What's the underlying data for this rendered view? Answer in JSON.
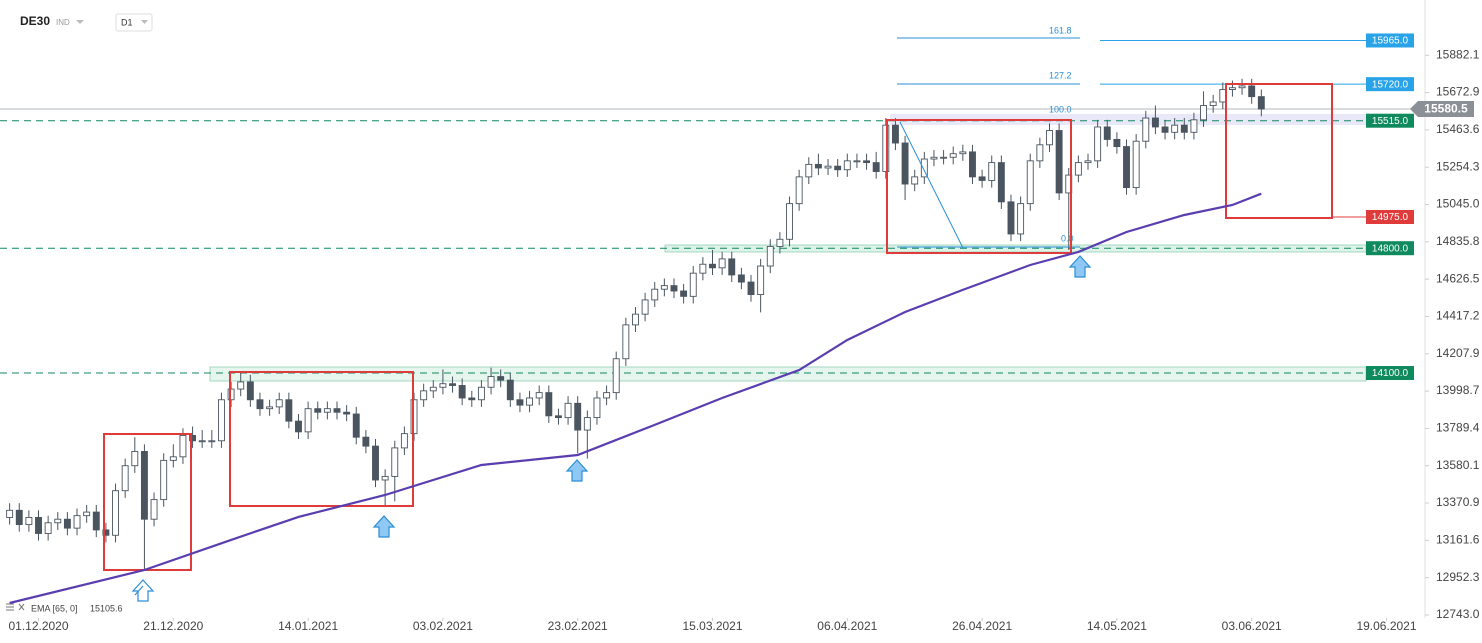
{
  "chart_data": {
    "type": "candlestick",
    "symbol": "DE30",
    "market": "IND",
    "interval": "D1",
    "bull_color": "#ffffff",
    "bear_color": "#4a5560",
    "outline_color": "#4a5560",
    "open": [
      13290,
      13330,
      13250,
      13290,
      13200,
      13260,
      13280,
      13230,
      13300,
      13320,
      13220,
      13190,
      13440,
      13580,
      13660,
      13280,
      13390,
      13610,
      13630,
      13750,
      13720,
      13720,
      13720,
      13950,
      14010,
      14050,
      13950,
      13900,
      13910,
      13950,
      13830,
      13770,
      13900,
      13880,
      13900,
      13880,
      13870,
      13740,
      13690,
      13500,
      13520,
      13680,
      13760,
      13950,
      14000,
      14020,
      14040,
      14030,
      13960,
      13950,
      14020,
      14080,
      14060,
      13950,
      13920,
      13960,
      13990,
      13860,
      13850,
      13930,
      13780,
      13850,
      13960,
      13990,
      14180,
      14370,
      14430,
      14510,
      14570,
      14590,
      14560,
      14530,
      14660,
      14710,
      14690,
      14740,
      14650,
      14610,
      14540,
      14700,
      14810,
      14850,
      15050,
      15200,
      15270,
      15250,
      15260,
      15240,
      15290,
      15290,
      15280,
      15230,
      15490,
      15390,
      15160,
      15200,
      15300,
      15310,
      15310,
      15330,
      15340,
      15200,
      15180,
      15280,
      15060,
      14880,
      15050,
      15290,
      15380,
      15460,
      15110,
      15210,
      15280,
      15290,
      15480,
      15410,
      15370,
      15140,
      15400,
      15530,
      15480,
      15450,
      15490,
      15450,
      15520,
      15600,
      15620,
      15690,
      15700,
      15710,
      15650
    ],
    "high": [
      13370,
      13370,
      13330,
      13330,
      13300,
      13320,
      13320,
      13340,
      13360,
      13360,
      13260,
      13480,
      13620,
      13740,
      13700,
      13430,
      13650,
      13700,
      13790,
      13800,
      13780,
      13780,
      13990,
      14050,
      14110,
      14090,
      13990,
      13950,
      13990,
      13990,
      13870,
      13940,
      13940,
      13940,
      13940,
      13920,
      13910,
      13780,
      13730,
      13560,
      13720,
      13800,
      13990,
      14040,
      14060,
      14120,
      14080,
      14070,
      14000,
      14060,
      14130,
      14120,
      14100,
      13990,
      14000,
      14030,
      14030,
      13900,
      13970,
      13970,
      13890,
      14000,
      14030,
      14220,
      14410,
      14470,
      14550,
      14610,
      14630,
      14630,
      14600,
      14700,
      14750,
      14790,
      14780,
      14780,
      14690,
      14650,
      14740,
      14850,
      14890,
      15090,
      15240,
      15310,
      15330,
      15300,
      15300,
      15330,
      15330,
      15330,
      15340,
      15530,
      15530,
      15430,
      15240,
      15340,
      15350,
      15350,
      15370,
      15380,
      15380,
      15240,
      15320,
      15320,
      15100,
      15090,
      15330,
      15420,
      15500,
      15500,
      15250,
      15320,
      15330,
      15520,
      15520,
      15450,
      15410,
      15440,
      15570,
      15600,
      15520,
      15530,
      15530,
      15560,
      15680,
      15660,
      15730,
      15740,
      15750,
      15750,
      15690
    ],
    "low": [
      13250,
      13210,
      13210,
      13160,
      13160,
      13220,
      13190,
      13190,
      13260,
      13180,
      13150,
      13150,
      13400,
      13540,
      13000,
      13240,
      13350,
      13570,
      13590,
      13680,
      13680,
      13680,
      13680,
      13910,
      13970,
      13910,
      13860,
      13860,
      13870,
      13790,
      13730,
      13730,
      13840,
      13840,
      13840,
      13830,
      13700,
      13650,
      13460,
      13350,
      13380,
      13640,
      13720,
      13910,
      13960,
      13980,
      13990,
      13920,
      13910,
      13910,
      13980,
      14020,
      13910,
      13880,
      13880,
      13920,
      13820,
      13810,
      13810,
      13650,
      13620,
      13810,
      13920,
      13950,
      14140,
      14330,
      14390,
      14470,
      14530,
      14520,
      14490,
      14490,
      14620,
      14650,
      14650,
      14610,
      14570,
      14500,
      14440,
      14660,
      14770,
      14810,
      15010,
      15160,
      15210,
      15210,
      15200,
      15200,
      15250,
      15240,
      15190,
      15190,
      15350,
      15070,
      15120,
      15160,
      15260,
      15270,
      15270,
      15290,
      15160,
      15140,
      15140,
      15020,
      14840,
      14840,
      15010,
      15250,
      15340,
      15070,
      14790,
      15170,
      15240,
      15250,
      15370,
      15330,
      15100,
      15100,
      15360,
      15440,
      15410,
      15410,
      15410,
      15410,
      15480,
      15560,
      15580,
      15650,
      15660,
      15610,
      15540
    ],
    "close": [
      13330,
      13250,
      13290,
      13200,
      13260,
      13280,
      13230,
      13300,
      13320,
      13220,
      13190,
      13440,
      13580,
      13660,
      13280,
      13390,
      13610,
      13630,
      13750,
      13720,
      13720,
      13720,
      13950,
      14010,
      14050,
      13950,
      13900,
      13910,
      13950,
      13830,
      13770,
      13900,
      13880,
      13900,
      13880,
      13870,
      13740,
      13690,
      13500,
      13520,
      13680,
      13760,
      13950,
      14000,
      14020,
      14040,
      14030,
      13960,
      13950,
      14020,
      14080,
      14060,
      13950,
      13920,
      13960,
      13990,
      13860,
      13850,
      13930,
      13780,
      13850,
      13960,
      13990,
      14180,
      14370,
      14430,
      14510,
      14570,
      14590,
      14560,
      14530,
      14660,
      14710,
      14690,
      14740,
      14650,
      14610,
      14540,
      14700,
      14810,
      14850,
      15050,
      15200,
      15270,
      15250,
      15260,
      15240,
      15290,
      15290,
      15280,
      15230,
      15490,
      15390,
      15160,
      15200,
      15300,
      15310,
      15310,
      15330,
      15340,
      15200,
      15180,
      15280,
      15060,
      14880,
      15050,
      15290,
      15380,
      15460,
      15110,
      15210,
      15280,
      15290,
      15480,
      15410,
      15370,
      15140,
      15400,
      15530,
      15480,
      15450,
      15490,
      15450,
      15520,
      15600,
      15620,
      15690,
      15700,
      15710,
      15650,
      15580.5
    ],
    "xlim": [
      -1,
      147
    ],
    "xticks": [
      {
        "value": 3,
        "label": "01.12.2020"
      },
      {
        "value": 17,
        "label": "21.12.2020"
      },
      {
        "value": 31,
        "label": "14.01.2021"
      },
      {
        "value": 45,
        "label": "03.02.2021"
      },
      {
        "value": 59,
        "label": "23.02.2021"
      },
      {
        "value": 73,
        "label": "15.03.2021"
      },
      {
        "value": 87,
        "label": "06.04.2021"
      },
      {
        "value": 101,
        "label": "26.04.2021"
      },
      {
        "value": 115,
        "label": "14.05.2021"
      },
      {
        "value": 129,
        "label": "03.06.2021"
      },
      {
        "value": 143,
        "label": "19.06.2021"
      }
    ],
    "ylim": [
      12726,
      16192
    ],
    "yticks": [
      15882.1,
      15672.9,
      15463.6,
      15254.3,
      {
        "value": 15045,
        "label": "15045.0"
      },
      14835.8,
      14626.5,
      14417.2,
      14207.9,
      13998.7,
      13789.4,
      13580.1,
      13370.9,
      13161.6,
      12952.3,
      {
        "value": 12743,
        "label": "12743.0"
      }
    ],
    "ema": {
      "name": "EMA [65, 0]",
      "color": "#5a3eb0",
      "x": [
        0,
        14,
        23,
        30,
        39,
        49,
        59,
        67,
        74,
        82,
        87,
        93,
        99,
        106,
        111,
        116,
        122,
        127,
        130
      ],
      "values": [
        12810,
        12995,
        13164,
        13293,
        13416,
        13584,
        13640,
        13809,
        13960,
        14117,
        14285,
        14442,
        14566,
        14706,
        14779,
        14891,
        14986,
        15042,
        15105.6
      ]
    },
    "levels": [
      {
        "value": 15965,
        "label": "15965.0",
        "color": "#29a3e8",
        "style": "solid"
      },
      {
        "value": 15720,
        "label": "15720.0",
        "color": "#29a3e8",
        "style": "solid"
      },
      {
        "value": 15515,
        "label": "15515.0",
        "color": "#0f8a5f",
        "style": "dashed"
      },
      {
        "value": 14975,
        "label": "14975.0",
        "color": "#e03b3b",
        "style": "solid"
      },
      {
        "value": 14800,
        "label": "14800.0",
        "color": "#0f8a5f",
        "style": "dashed"
      },
      {
        "value": 14100,
        "label": "14100.0",
        "color": "#0f8a5f",
        "style": "dashed"
      }
    ],
    "last_price": 15580.5,
    "last_price_color": "#8a9096",
    "fib_labels": [
      "161.8",
      "127.2",
      "100.0",
      "0.0"
    ]
  }
}
